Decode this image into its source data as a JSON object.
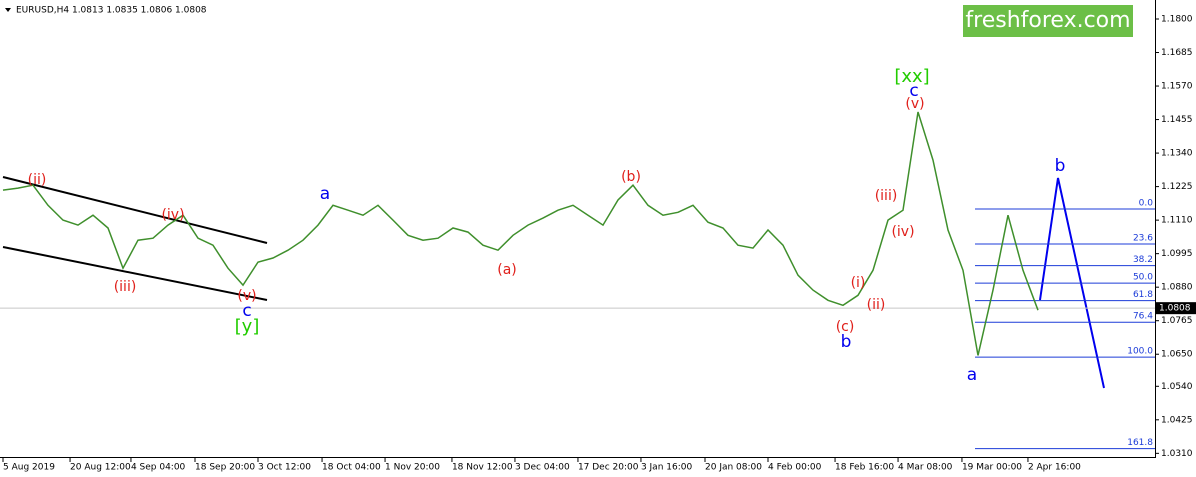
{
  "chart_data": {
    "type": "line",
    "title": "EURUSD,H4  1.0813 1.0835 1.0806 1.0808",
    "watermark": "freshforex.com",
    "color": "#3f8f2c",
    "values": [
      1.1213,
      1.122,
      1.123,
      1.1161,
      1.111,
      1.1093,
      1.1127,
      1.1083,
      1.0945,
      1.1041,
      1.1048,
      1.1093,
      1.1127,
      1.1048,
      1.1024,
      1.0945,
      1.0887,
      1.0966,
      1.098,
      1.1007,
      1.1041,
      1.1093,
      1.1161,
      1.1144,
      1.1127,
      1.1161,
      1.111,
      1.1058,
      1.1041,
      1.1048,
      1.1083,
      1.1069,
      1.1024,
      1.1007,
      1.1058,
      1.1093,
      1.1117,
      1.1144,
      1.1161,
      1.1127,
      1.1093,
      1.1179,
      1.123,
      1.1161,
      1.1127,
      1.1137,
      1.1161,
      1.1103,
      1.1083,
      1.1024,
      1.1014,
      1.1076,
      1.1024,
      1.0921,
      1.087,
      1.0835,
      1.0818,
      1.0852,
      1.0938,
      1.111,
      1.1144,
      1.1481,
      1.1316,
      1.1076,
      1.0938,
      1.0646,
      1.087,
      1.1127,
      1.0938,
      1.0801
    ],
    "ylim": [
      1.027,
      1.1848
    ],
    "yticks": [
      {
        "value": 1.18,
        "label": "1.1800"
      },
      1.1685,
      {
        "value": 1.157,
        "label": "1.1570"
      },
      1.1455,
      {
        "value": 1.134,
        "label": "1.1340"
      },
      1.1225,
      {
        "value": 1.111,
        "label": "1.1110"
      },
      1.0995,
      {
        "value": 1.088,
        "label": "1.0880"
      },
      1.0765,
      {
        "value": 1.065,
        "label": "1.0650"
      },
      {
        "value": 1.054,
        "label": "1.0540"
      },
      1.0425,
      {
        "value": 1.031,
        "label": "1.0310"
      }
    ],
    "xticks": [
      {
        "value": 0,
        "label": "5 Aug 2019"
      },
      {
        "value": 4.47,
        "label": "20 Aug 12:00"
      },
      {
        "value": 8.53,
        "label": "4 Sep 04:00"
      },
      {
        "value": 12.8,
        "label": "18 Sep 20:00"
      },
      {
        "value": 17,
        "label": "3 Oct 12:00"
      },
      {
        "value": 21.27,
        "label": "18 Oct 04:00"
      },
      {
        "value": 25.47,
        "label": "1 Nov 20:00"
      },
      {
        "value": 29.93,
        "label": "18 Nov 12:00"
      },
      {
        "value": 34.13,
        "label": "3 Dec 04:00"
      },
      {
        "value": 38.33,
        "label": "17 Dec 20:00"
      },
      {
        "value": 42.53,
        "label": "3 Jan 16:00"
      },
      {
        "value": 46.8,
        "label": "20 Jan 08:00"
      },
      {
        "value": 51,
        "label": "4 Feb 00:00"
      },
      {
        "value": 55.47,
        "label": "18 Feb 16:00"
      },
      {
        "value": 59.67,
        "label": "4 Mar 08:00"
      },
      {
        "value": 63.93,
        "label": "19 Mar 00:00"
      },
      {
        "value": 68.33,
        "label": "2 Apr 16:00"
      }
    ],
    "last_price": 1.0808,
    "annotations": [
      {
        "text": "(ii)",
        "color": "#e0201b"
      },
      {
        "text": "(iii)",
        "color": "#e0201b"
      },
      {
        "text": "(iv)",
        "color": "#e0201b"
      },
      {
        "text": "(v)",
        "color": "#e0201b"
      },
      {
        "text": "c",
        "color": "#0000ee"
      },
      {
        "text": "[y]",
        "color": "#22cc00"
      },
      {
        "text": "a",
        "color": "#0000ee"
      },
      {
        "text": "(a)",
        "color": "#e0201b"
      },
      {
        "text": "(b)",
        "color": "#e0201b"
      },
      {
        "text": "(c)",
        "color": "#e0201b"
      },
      {
        "text": "b",
        "color": "#0000ee"
      },
      {
        "text": "(i)",
        "color": "#e0201b"
      },
      {
        "text": "(ii)",
        "color": "#e0201b"
      },
      {
        "text": "(iii)",
        "color": "#e0201b"
      },
      {
        "text": "(iv)",
        "color": "#e0201b"
      },
      {
        "text": "(v)",
        "color": "#e0201b"
      },
      {
        "text": "c",
        "color": "#0000ee"
      },
      {
        "text": "[xx]",
        "color": "#22cc00"
      },
      {
        "text": "a",
        "color": "#0000ee"
      },
      {
        "text": "b",
        "color": "#0000ee"
      }
    ],
    "fibonacci": {
      "high": 1.1148,
      "low": 1.064,
      "color": "#1b3bd8",
      "levels": [
        {
          "value": 0,
          "label": "0.0"
        },
        23.6,
        38.2,
        {
          "value": 50,
          "label": "50.0"
        },
        61.8,
        76.4,
        {
          "value": 100,
          "label": "100.0"
        },
        161.8
      ]
    }
  }
}
